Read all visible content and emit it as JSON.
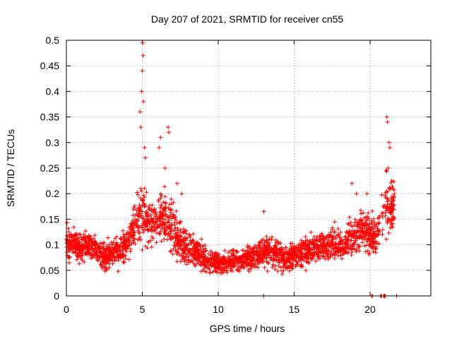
{
  "chart_data": {
    "type": "scatter",
    "title": "Day 207 of 2021, SRMTID for receiver cn55",
    "xlabel": "GPS time / hours",
    "ylabel": "SRMTID / TECUs",
    "xlim": [
      0,
      24
    ],
    "ylim": [
      0,
      0.5
    ],
    "xticks": [
      0,
      5,
      10,
      15,
      20
    ],
    "xtick_labels": [
      "0",
      "5",
      "10",
      "15",
      "20"
    ],
    "yticks": [
      0,
      0.05,
      0.1,
      0.15,
      0.2,
      0.25,
      0.3,
      0.35,
      0.4,
      0.45,
      0.5
    ],
    "ytick_labels": [
      "0",
      "0.05",
      "0.1",
      "0.15",
      "0.2",
      "0.25",
      "0.3",
      "0.35",
      "0.4",
      "0.45",
      "0.5"
    ],
    "grid": true,
    "marker": "+",
    "color": "#ff0000",
    "envelope": [
      [
        0.0,
        0.11,
        0.035
      ],
      [
        0.5,
        0.1,
        0.035
      ],
      [
        1.0,
        0.095,
        0.03
      ],
      [
        1.5,
        0.1,
        0.03
      ],
      [
        2.0,
        0.09,
        0.03
      ],
      [
        2.5,
        0.075,
        0.028
      ],
      [
        3.0,
        0.085,
        0.028
      ],
      [
        3.5,
        0.09,
        0.03
      ],
      [
        4.0,
        0.1,
        0.035
      ],
      [
        4.5,
        0.14,
        0.05
      ],
      [
        5.0,
        0.17,
        0.07
      ],
      [
        5.5,
        0.14,
        0.05
      ],
      [
        6.0,
        0.15,
        0.05
      ],
      [
        6.5,
        0.15,
        0.05
      ],
      [
        7.0,
        0.13,
        0.05
      ],
      [
        7.5,
        0.1,
        0.04
      ],
      [
        8.0,
        0.09,
        0.035
      ],
      [
        8.5,
        0.085,
        0.03
      ],
      [
        9.0,
        0.075,
        0.025
      ],
      [
        9.5,
        0.07,
        0.022
      ],
      [
        10.0,
        0.065,
        0.02
      ],
      [
        10.5,
        0.065,
        0.02
      ],
      [
        11.0,
        0.07,
        0.022
      ],
      [
        11.5,
        0.07,
        0.022
      ],
      [
        12.0,
        0.075,
        0.025
      ],
      [
        12.5,
        0.08,
        0.025
      ],
      [
        13.0,
        0.09,
        0.03
      ],
      [
        13.5,
        0.09,
        0.03
      ],
      [
        14.0,
        0.075,
        0.028
      ],
      [
        14.5,
        0.075,
        0.028
      ],
      [
        15.0,
        0.08,
        0.028
      ],
      [
        15.5,
        0.085,
        0.028
      ],
      [
        16.0,
        0.09,
        0.03
      ],
      [
        16.5,
        0.095,
        0.03
      ],
      [
        17.0,
        0.1,
        0.03
      ],
      [
        17.5,
        0.1,
        0.03
      ],
      [
        18.0,
        0.1,
        0.03
      ],
      [
        18.5,
        0.11,
        0.035
      ],
      [
        19.0,
        0.12,
        0.04
      ],
      [
        19.5,
        0.13,
        0.045
      ],
      [
        20.0,
        0.12,
        0.04
      ],
      [
        20.5,
        0.12,
        0.04
      ],
      [
        21.0,
        0.18,
        0.06
      ],
      [
        21.5,
        0.17,
        0.05
      ]
    ],
    "time_range": [
      0.0,
      21.6
    ],
    "peaks": [
      {
        "x": 4.85,
        "y": 0.36
      },
      {
        "x": 4.9,
        "y": 0.33
      },
      {
        "x": 4.95,
        "y": 0.4
      },
      {
        "x": 5.0,
        "y": 0.44
      },
      {
        "x": 5.02,
        "y": 0.495
      },
      {
        "x": 5.05,
        "y": 0.47
      },
      {
        "x": 5.08,
        "y": 0.38
      },
      {
        "x": 5.15,
        "y": 0.29
      },
      {
        "x": 5.2,
        "y": 0.27
      },
      {
        "x": 6.1,
        "y": 0.29
      },
      {
        "x": 6.2,
        "y": 0.31
      },
      {
        "x": 6.5,
        "y": 0.25
      },
      {
        "x": 6.7,
        "y": 0.33
      },
      {
        "x": 6.75,
        "y": 0.32
      },
      {
        "x": 7.3,
        "y": 0.22
      },
      {
        "x": 7.6,
        "y": 0.2
      },
      {
        "x": 13.0,
        "y": 0.165
      },
      {
        "x": 21.1,
        "y": 0.35
      },
      {
        "x": 21.15,
        "y": 0.34
      },
      {
        "x": 21.25,
        "y": 0.3
      },
      {
        "x": 21.3,
        "y": 0.29
      },
      {
        "x": 21.2,
        "y": 0.25
      },
      {
        "x": 21.5,
        "y": 0.21
      },
      {
        "x": 21.6,
        "y": 0.2
      },
      {
        "x": 18.8,
        "y": 0.22
      },
      {
        "x": 19.1,
        "y": 0.2
      },
      {
        "x": 19.8,
        "y": 0.2
      }
    ],
    "zeros_x": [
      13.0,
      20.1,
      20.15,
      20.7,
      20.75,
      20.9,
      20.95,
      21.0,
      21.75
    ]
  }
}
